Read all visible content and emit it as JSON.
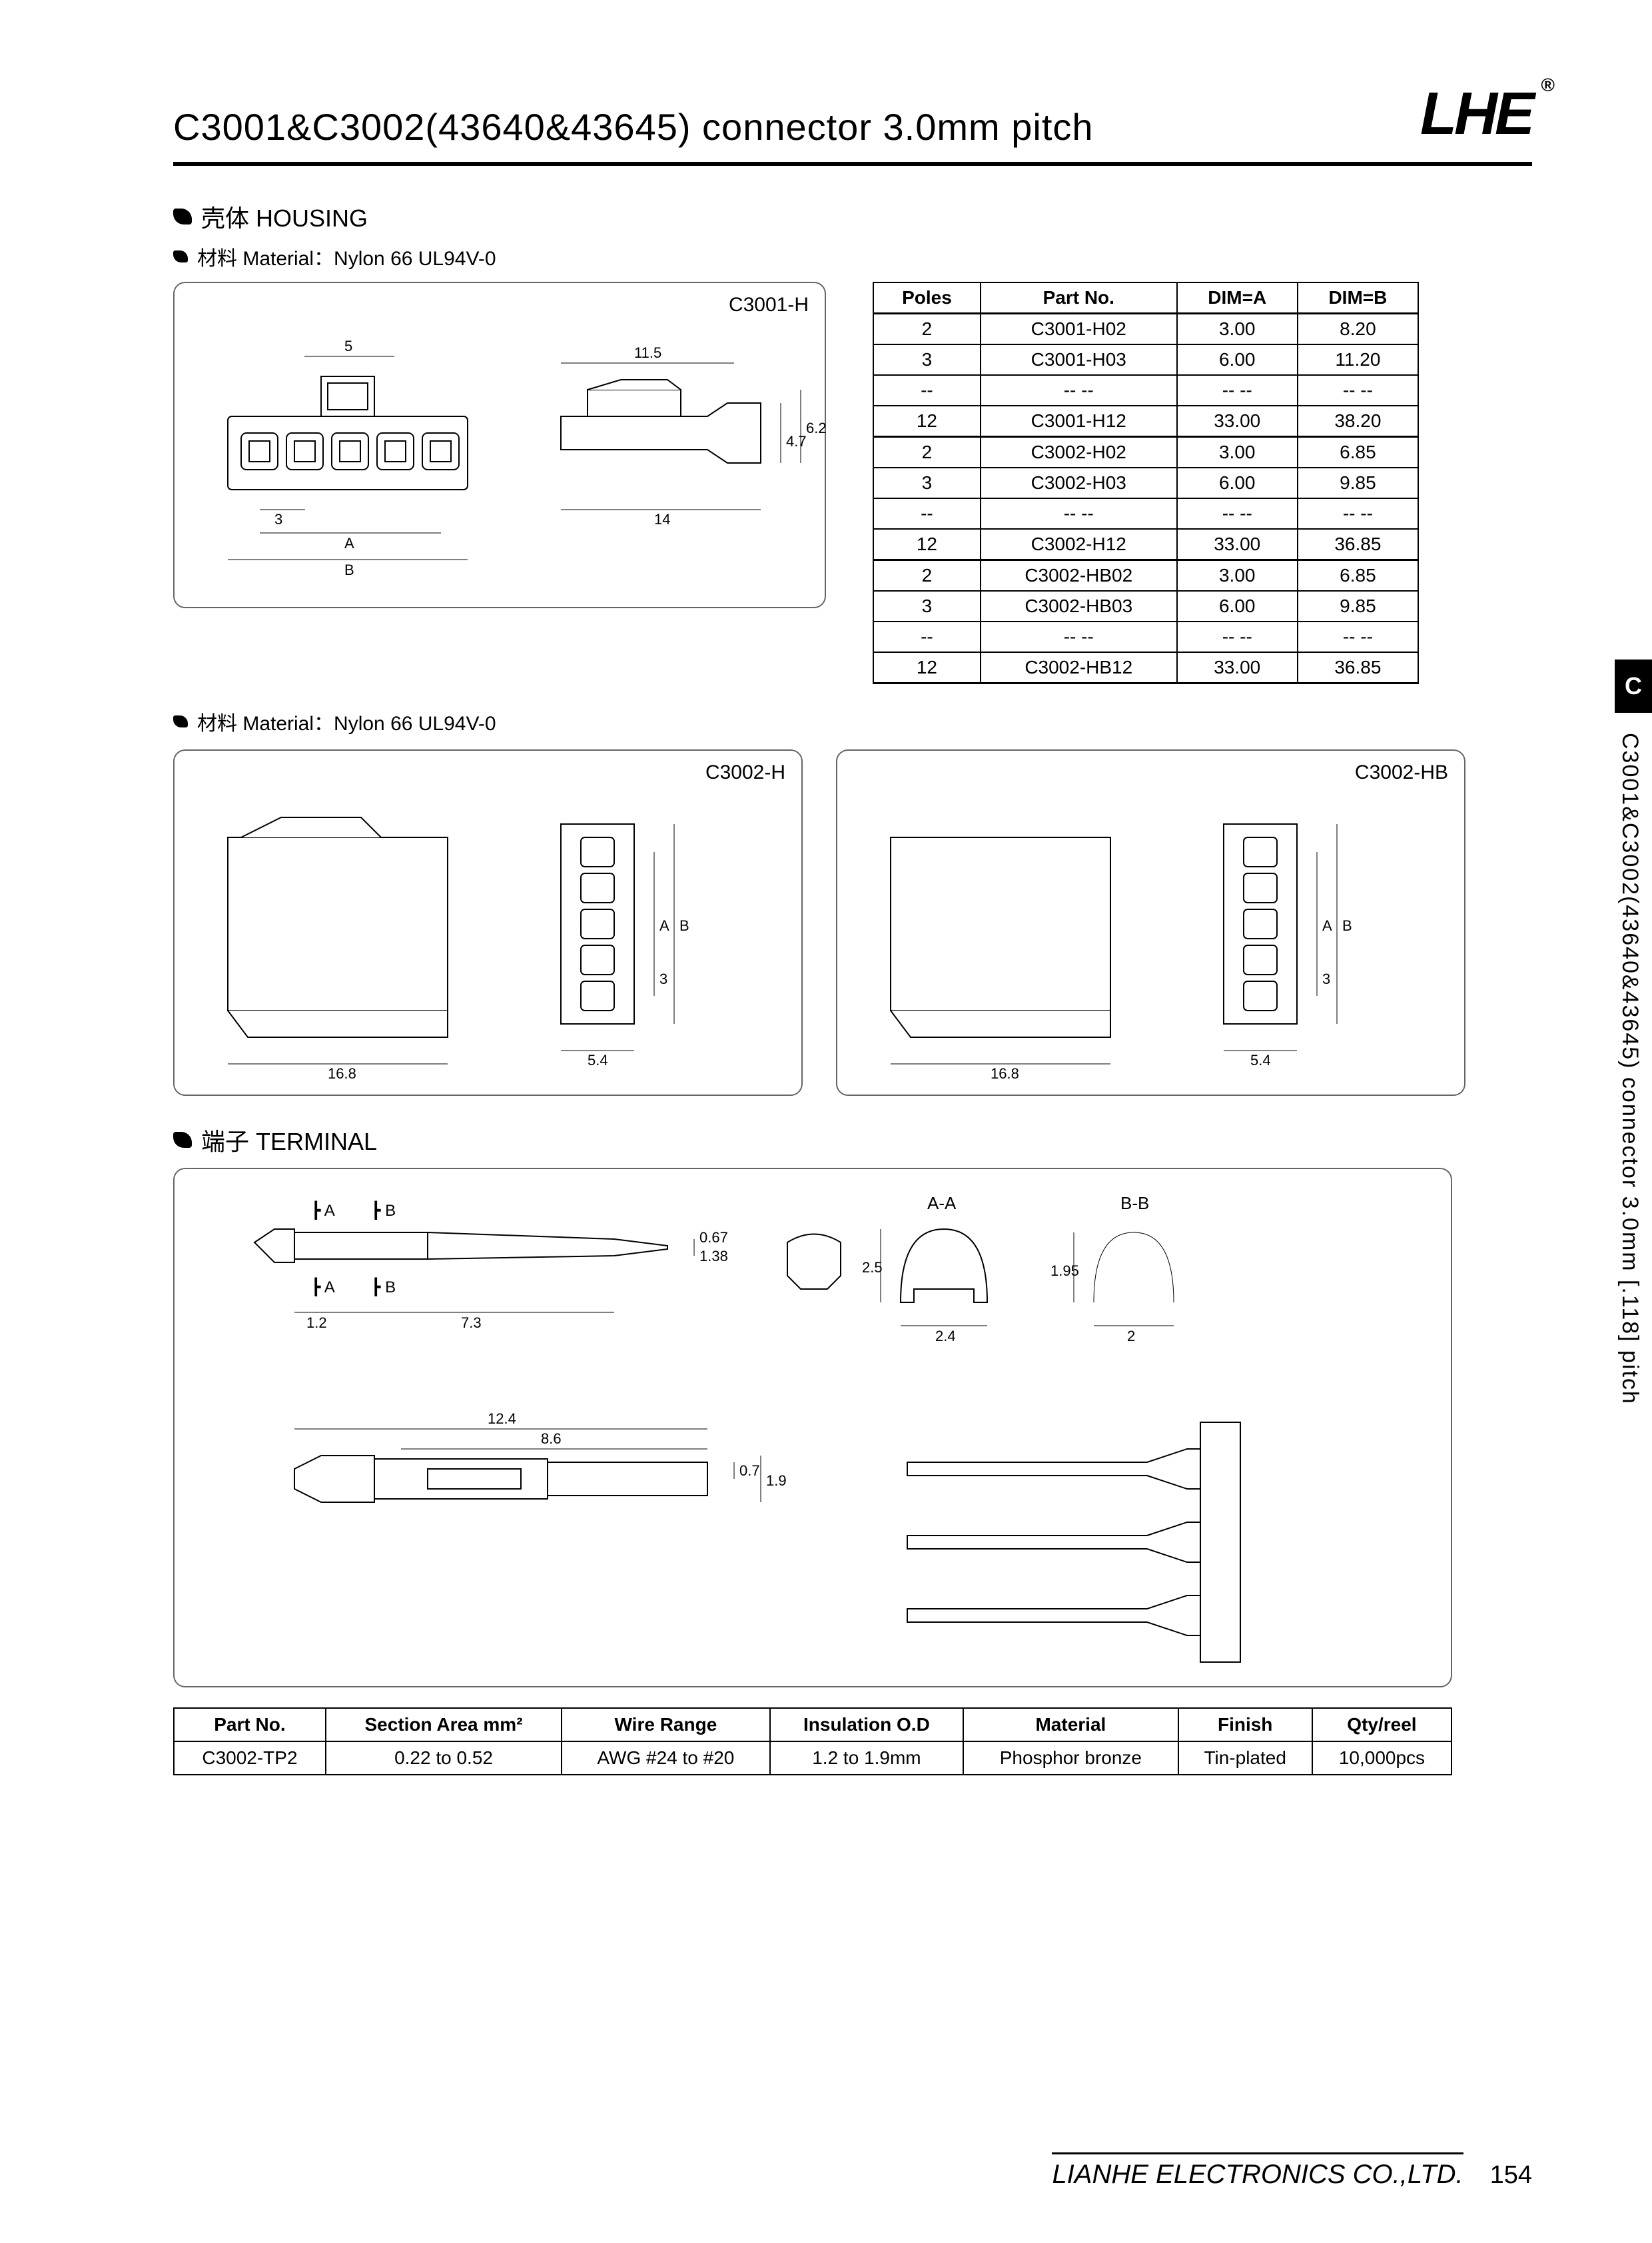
{
  "header": {
    "title": "C3001&C3002(43640&43645) connector 3.0mm pitch",
    "logo": "LHE",
    "logo_mark": "®"
  },
  "sections": {
    "housing_title": "壳体 HOUSING",
    "material_label": "材料 Material：Nylon 66 UL94V-0",
    "terminal_title": "端子 TERMINAL"
  },
  "panels": {
    "p1_label": "C3001-H",
    "p2_label": "C3002-H",
    "p3_label": "C3002-HB"
  },
  "housing_drawing1": {
    "dims": {
      "pin_pitch": "5",
      "pitch": "3",
      "A": "A",
      "B": "B",
      "side_w": "11.5",
      "side_h1": "4.7",
      "side_h2": "6.2",
      "side_len": "14"
    }
  },
  "housing_drawing2": {
    "dims": {
      "w": "16.8",
      "end_w": "5.4",
      "pitch": "3",
      "A": "A",
      "B": "B"
    }
  },
  "housing_drawing3": {
    "dims": {
      "w": "16.8",
      "end_w": "5.4",
      "pitch": "3",
      "A": "A",
      "B": "B"
    }
  },
  "housing_table": {
    "columns": [
      "Poles",
      "Part No.",
      "DIM=A",
      "DIM=B"
    ],
    "rows": [
      [
        "2",
        "C3001-H02",
        "3.00",
        "8.20"
      ],
      [
        "3",
        "C3001-H03",
        "6.00",
        "11.20"
      ],
      [
        "--",
        "-- --",
        "-- --",
        "-- --"
      ],
      [
        "12",
        "C3001-H12",
        "33.00",
        "38.20"
      ],
      [
        "2",
        "C3002-H02",
        "3.00",
        "6.85"
      ],
      [
        "3",
        "C3002-H03",
        "6.00",
        "9.85"
      ],
      [
        "--",
        "-- --",
        "-- --",
        "-- --"
      ],
      [
        "12",
        "C3002-H12",
        "33.00",
        "36.85"
      ],
      [
        "2",
        "C3002-HB02",
        "3.00",
        "6.85"
      ],
      [
        "3",
        "C3002-HB03",
        "6.00",
        "9.85"
      ],
      [
        "--",
        "-- --",
        "-- --",
        "-- --"
      ],
      [
        "12",
        "C3002-HB12",
        "33.00",
        "36.85"
      ]
    ]
  },
  "terminal_drawing": {
    "sections": {
      "A": "A",
      "B": "B",
      "AA": "A-A",
      "BB": "B-B"
    },
    "dims": {
      "d1": "1.2",
      "d2": "7.3",
      "h1": "0.67",
      "h2": "1.38",
      "aa_w": "2.4",
      "aa_h": "2.5",
      "bb_w": "2",
      "bb_h": "1.95",
      "total": "12.4",
      "mid": "8.6",
      "t1": "0.7",
      "t2": "1.9"
    }
  },
  "terminal_table": {
    "columns": [
      "Part No.",
      "Section Area mm²",
      "Wire Range",
      "Insulation O.D",
      "Material",
      "Finish",
      "Qty/reel"
    ],
    "rows": [
      [
        "C3002-TP2",
        "0.22 to 0.52",
        "AWG #24 to #20",
        "1.2 to 1.9mm",
        "Phosphor bronze",
        "Tin-plated",
        "10,000pcs"
      ]
    ]
  },
  "side": {
    "tab": "C",
    "text": "C3001&C3002(43640&43645) connector 3.0mm [.118] pitch"
  },
  "footer": {
    "company": "LIANHE ELECTRONICS CO.,LTD.",
    "page": "154"
  },
  "styling": {
    "page_bg": "#ffffff",
    "border_color": "#666666",
    "text_color": "#000000",
    "rule_color": "#000000",
    "title_fontsize": 56,
    "section_fontsize": 36,
    "table_fontsize": 28,
    "dim_fontsize": 22
  }
}
